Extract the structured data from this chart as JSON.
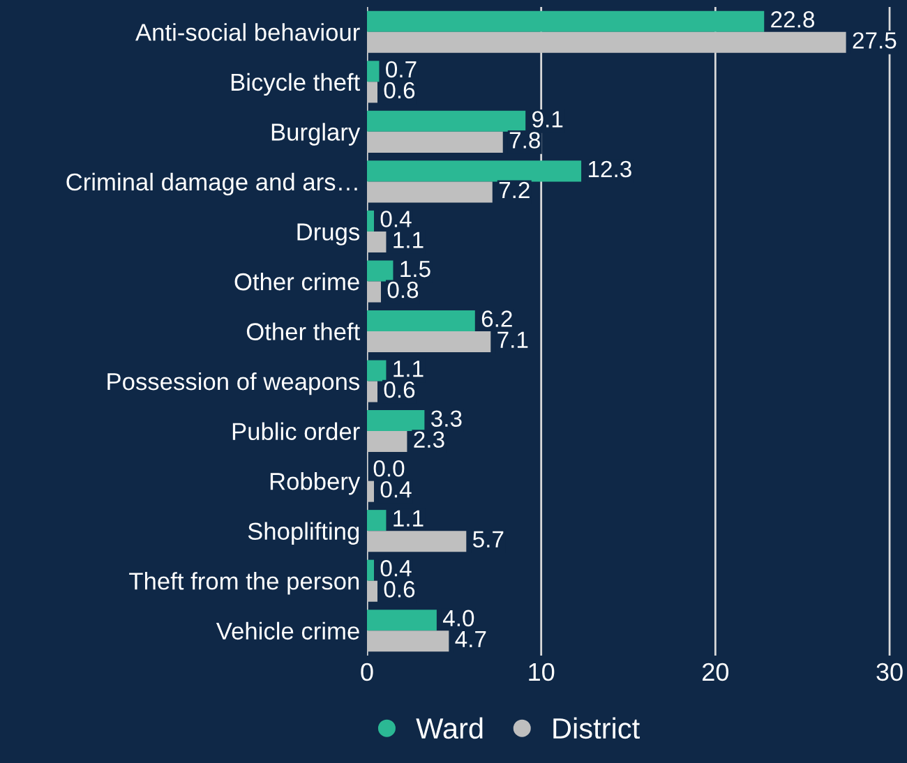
{
  "chart_data": {
    "type": "bar",
    "orientation": "horizontal",
    "categories": [
      "Anti-social behaviour",
      "Bicycle theft",
      "Burglary",
      "Criminal damage and ars…",
      "Drugs",
      "Other crime",
      "Other theft",
      "Possession of weapons",
      "Public order",
      "Robbery",
      "Shoplifting",
      "Theft from the person",
      "Vehicle crime"
    ],
    "series": [
      {
        "name": "Ward",
        "color": "#2bb894",
        "values": [
          22.8,
          0.7,
          9.1,
          12.3,
          0.4,
          1.5,
          6.2,
          1.1,
          3.3,
          0.0,
          1.1,
          0.4,
          4.0
        ],
        "value_labels": [
          "22.8",
          "0.7",
          "9.1",
          "12.3",
          "0.4",
          "1.5",
          "6.2",
          "1.1",
          "3.3",
          "0.0",
          "1.1",
          "0.4",
          "4.0"
        ]
      },
      {
        "name": "District",
        "color": "#bfbfbf",
        "values": [
          27.5,
          0.6,
          7.8,
          7.2,
          1.1,
          0.8,
          7.1,
          0.6,
          2.3,
          0.4,
          5.7,
          0.6,
          4.7
        ],
        "value_labels": [
          "27.5",
          "0.6",
          "7.8",
          "7.2",
          "1.1",
          "0.8",
          "7.1",
          "0.6",
          "2.3",
          "0.4",
          "5.7",
          "0.6",
          "4.7"
        ]
      }
    ],
    "xlim": [
      0,
      31
    ],
    "xticks": [
      0,
      10,
      20,
      30
    ],
    "grid": "x",
    "legend": "bottom",
    "marker": "circle"
  }
}
